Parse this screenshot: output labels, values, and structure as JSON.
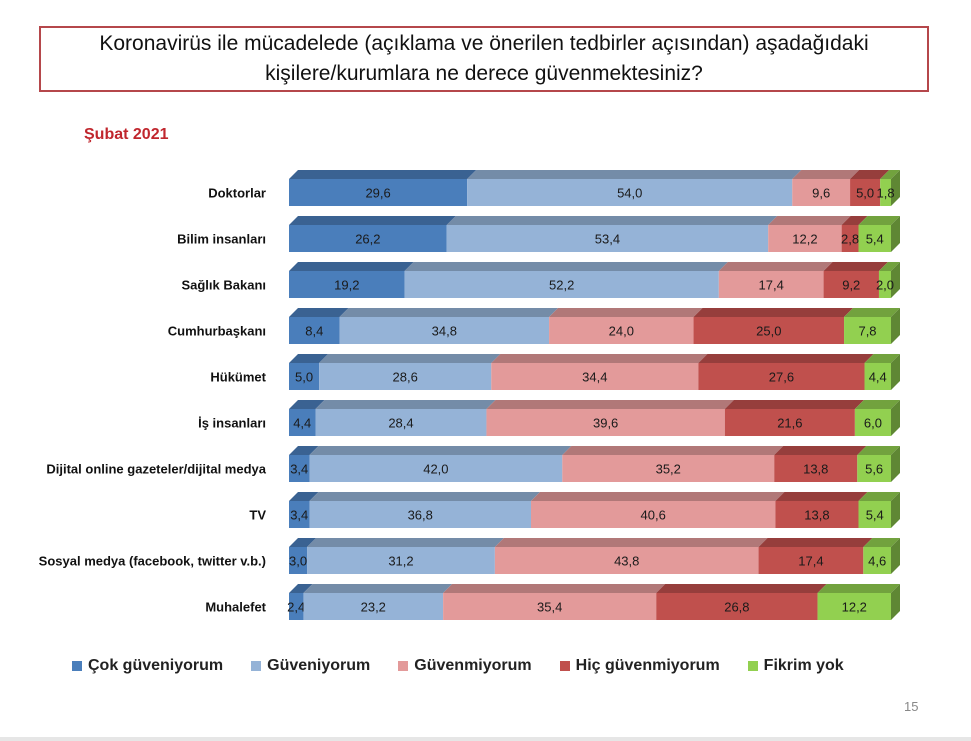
{
  "title": {
    "line1": "Koronavirüs ile mücadelede (açıklama ve önerilen tedbirler açısından) aşadağıdaki",
    "line2": "kişilere/kurumlara  ne derece güvenmektesiniz?"
  },
  "period_label": "Şubat 2021",
  "page_number": "15",
  "chart_data": {
    "type": "bar",
    "orientation": "horizontal",
    "stacked": "100%",
    "style": "3d",
    "title": "Koronavirüs ile mücadelede (açıklama ve önerilen tedbirler açısından) aşadağıdaki kişilere/kurumlara ne derece güvenmektesiniz?",
    "subtitle": "Şubat 2021",
    "xlabel": "",
    "ylabel": "",
    "xlim": [
      0,
      100
    ],
    "grid": false,
    "legend_position": "bottom",
    "categories": [
      "Doktorlar",
      "Bilim insanları",
      "Sağlık Bakanı",
      "Cumhurbaşkanı",
      "Hükümet",
      "İş insanları",
      "Dijital online gazeteler/dijital medya",
      "TV",
      "Sosyal medya (facebook, twitter v.b.)",
      "Muhalefet"
    ],
    "series": [
      {
        "name": "Çok güveniyorum",
        "color": "#4a7ebb",
        "values": [
          29.6,
          26.2,
          19.2,
          8.4,
          5.0,
          4.4,
          3.4,
          3.4,
          3.0,
          2.4
        ]
      },
      {
        "name": "Güveniyorum",
        "color": "#95b3d7",
        "values": [
          54.0,
          53.4,
          52.2,
          34.8,
          28.6,
          28.4,
          42.0,
          36.8,
          31.2,
          23.2
        ]
      },
      {
        "name": "Güvenmiyorum",
        "color": "#e39a9a",
        "values": [
          9.6,
          12.2,
          17.4,
          24.0,
          34.4,
          39.6,
          35.2,
          40.6,
          43.8,
          35.4
        ]
      },
      {
        "name": "Hiç güvenmiyorum",
        "color": "#c0504d",
        "values": [
          5.0,
          2.8,
          9.2,
          25.0,
          27.6,
          21.6,
          13.8,
          13.8,
          17.4,
          26.8
        ]
      },
      {
        "name": "Fikrim yok",
        "color": "#92d050",
        "values": [
          1.8,
          5.4,
          2.0,
          7.8,
          4.4,
          6.0,
          5.6,
          5.4,
          4.6,
          12.2
        ]
      }
    ],
    "value_labels": [
      [
        "29,6",
        "54,0",
        "9,6",
        "5,0",
        "1,8"
      ],
      [
        "26,2",
        "53,4",
        "12,2",
        "2,8",
        "5,4"
      ],
      [
        "19,2",
        "52,2",
        "17,4",
        "9,2",
        "2,0"
      ],
      [
        "8,4",
        "34,8",
        "24,0",
        "25,0",
        "7,8"
      ],
      [
        "5,0",
        "28,6",
        "34,4",
        "27,6",
        "4,4"
      ],
      [
        "4,4",
        "28,4",
        "39,6",
        "21,6",
        "6,0"
      ],
      [
        "3,4",
        "42,0",
        "35,2",
        "13,8",
        "5,6"
      ],
      [
        "3,4",
        "36,8",
        "40,6",
        "13,8",
        "5,4"
      ],
      [
        "3,0",
        "31,2",
        "43,8",
        "17,4",
        "4,6"
      ],
      [
        "2,4",
        "23,2",
        "35,4",
        "26,8",
        "12,2"
      ]
    ]
  }
}
